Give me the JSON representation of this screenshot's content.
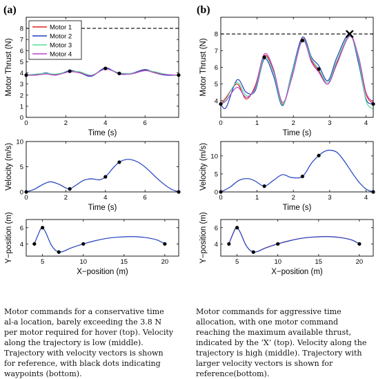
{
  "panels": {
    "a": {
      "label": "(a)",
      "caption": "Motor commands for a conservative time al-a location, barely exceeding the 3.8 N per motor required for hover (top). Velocity along the trajectory is low (middle). Trajectory with velocity vectors is shown for reference, with black dots indicating waypoints (bottom)."
    },
    "b": {
      "label": "(b)",
      "caption": "Motor commands for aggressive time allocation, with one motor command reaching the maximum available thrust, indicated by the ‘X’ (top). Velocity along the trajectory is high (middle). Trajectory with larger velocity vectors is shown for reference(bottom)."
    }
  },
  "colors": {
    "motor1": "#dd2222",
    "motor2": "#1f3fbf",
    "motor3": "#55dd99",
    "motor4": "#bb44cc",
    "velocity": "#1f3fbf",
    "vectors": "#ee2222",
    "limit": "#000000"
  },
  "chart_data": [
    {
      "id": "a-thrust",
      "type": "line",
      "xlabel": "Time (s)",
      "ylabel": "Motor Thrust (N)",
      "xlim": [
        0,
        7.7
      ],
      "ylim": [
        0,
        9
      ],
      "xticks": [
        0,
        2,
        4,
        6
      ],
      "yticks": [
        0,
        1,
        2,
        3,
        4,
        5,
        6,
        7,
        8
      ],
      "legend": {
        "placement": "top-left",
        "entries": [
          "Motor 1",
          "Motor 2",
          "Motor 3",
          "Motor 4"
        ]
      },
      "limit_line": 8,
      "waypoints": [
        [
          0,
          3.8
        ],
        [
          2.2,
          4.15
        ],
        [
          4.0,
          4.4
        ],
        [
          4.7,
          3.95
        ],
        [
          7.7,
          3.8
        ]
      ],
      "series": [
        {
          "name": "Motor 1",
          "color": "motor1",
          "x": [
            0,
            0.5,
            1.0,
            1.5,
            2.2,
            2.7,
            3.3,
            4.0,
            4.7,
            5.3,
            6.0,
            6.5,
            7.0,
            7.7
          ],
          "y": [
            3.8,
            3.85,
            3.95,
            3.85,
            4.15,
            4.05,
            3.75,
            4.4,
            3.95,
            3.95,
            4.25,
            4.05,
            3.85,
            3.8
          ]
        },
        {
          "name": "Motor 2",
          "color": "motor2",
          "x": [
            0,
            0.5,
            1.0,
            1.5,
            2.2,
            2.7,
            3.3,
            4.0,
            4.7,
            5.3,
            6.0,
            6.5,
            7.0,
            7.7
          ],
          "y": [
            3.8,
            3.8,
            4.0,
            3.8,
            4.2,
            4.0,
            3.7,
            4.45,
            3.9,
            3.95,
            4.3,
            4.0,
            3.8,
            3.8
          ]
        },
        {
          "name": "Motor 3",
          "color": "motor3",
          "x": [
            0,
            0.5,
            1.0,
            1.5,
            2.2,
            2.7,
            3.3,
            4.0,
            4.7,
            5.3,
            6.0,
            6.5,
            7.0,
            7.7
          ],
          "y": [
            3.8,
            3.9,
            3.95,
            3.9,
            4.1,
            4.1,
            3.8,
            4.35,
            4.0,
            3.95,
            4.2,
            4.1,
            3.9,
            3.75
          ]
        },
        {
          "name": "Motor 4",
          "color": "motor4",
          "x": [
            0,
            0.5,
            1.0,
            1.5,
            2.2,
            2.7,
            3.3,
            4.0,
            4.7,
            5.3,
            6.0,
            6.5,
            7.0,
            7.7
          ],
          "y": [
            3.8,
            3.8,
            3.9,
            3.8,
            4.1,
            4.0,
            3.75,
            4.35,
            3.95,
            3.9,
            4.2,
            4.0,
            3.85,
            3.8
          ]
        }
      ]
    },
    {
      "id": "a-velocity",
      "type": "line",
      "xlabel": "Time (s)",
      "ylabel": "Velocity (m/s)",
      "xlim": [
        0,
        7.7
      ],
      "ylim": [
        0,
        10
      ],
      "xticks": [
        0,
        2,
        4,
        6
      ],
      "yticks": [
        0,
        5,
        10
      ],
      "waypoints": [
        [
          0,
          0
        ],
        [
          2.2,
          0.6
        ],
        [
          4.0,
          3.0
        ],
        [
          4.7,
          5.9
        ],
        [
          7.7,
          0
        ]
      ],
      "series": [
        {
          "color": "velocity",
          "x": [
            0,
            0.4,
            0.8,
            1.2,
            1.6,
            2.0,
            2.2,
            2.5,
            2.9,
            3.3,
            3.7,
            4.0,
            4.4,
            4.7,
            5.0,
            5.3,
            5.7,
            6.1,
            6.5,
            6.9,
            7.3,
            7.7
          ],
          "y": [
            0,
            0.5,
            1.4,
            2.0,
            1.6,
            0.8,
            0.6,
            1.3,
            2.3,
            2.6,
            2.4,
            3.0,
            4.8,
            5.9,
            6.4,
            6.4,
            5.8,
            4.6,
            3.1,
            1.7,
            0.6,
            0
          ]
        }
      ]
    },
    {
      "id": "a-trajectory",
      "type": "line",
      "xlabel": "X−position (m)",
      "ylabel": "Y−position (m)",
      "xlim": [
        3,
        21.7
      ],
      "ylim": [
        2.5,
        7
      ],
      "xticks": [
        5,
        10,
        15,
        20
      ],
      "yticks": [
        4,
        6
      ],
      "waypoints": [
        [
          4,
          4
        ],
        [
          5,
          6
        ],
        [
          7,
          3
        ],
        [
          10,
          4
        ],
        [
          20,
          4
        ]
      ],
      "vector_scale": 0.03,
      "series": [
        {
          "color": "velocity",
          "x": [
            4,
            4.4,
            4.8,
            5.0,
            5.4,
            6.0,
            6.5,
            7.0,
            7.6,
            8.5,
            10,
            11.5,
            13,
            14.5,
            16,
            17.5,
            19,
            20
          ],
          "y": [
            4,
            5.0,
            5.9,
            6.0,
            5.4,
            4.0,
            3.3,
            3.0,
            3.1,
            3.5,
            4.0,
            4.4,
            4.7,
            4.85,
            4.9,
            4.8,
            4.5,
            4.0
          ]
        }
      ]
    },
    {
      "id": "b-thrust",
      "type": "line",
      "xlabel": "Time (s)",
      "ylabel": "Motor Thrust (N)",
      "xlim": [
        0,
        4.2
      ],
      "ylim": [
        3,
        9
      ],
      "xticks": [
        0,
        1,
        2,
        3,
        4
      ],
      "yticks": [
        4,
        5,
        6,
        7,
        8
      ],
      "limit_line": 8,
      "max_marker": [
        3.55,
        8.0
      ],
      "waypoints": [
        [
          0,
          3.8
        ],
        [
          1.2,
          6.6
        ],
        [
          2.25,
          7.6
        ],
        [
          2.7,
          5.9
        ],
        [
          4.2,
          3.8
        ]
      ],
      "series": [
        {
          "name": "Motor 1",
          "color": "motor1",
          "x": [
            0,
            0.15,
            0.45,
            0.7,
            0.95,
            1.2,
            1.45,
            1.7,
            1.95,
            2.25,
            2.5,
            2.7,
            2.95,
            3.2,
            3.55,
            3.8,
            4.0,
            4.2
          ],
          "y": [
            3.8,
            4.2,
            5.0,
            4.1,
            4.9,
            6.7,
            5.8,
            3.8,
            5.4,
            7.7,
            6.4,
            5.8,
            5.0,
            6.3,
            7.95,
            6.5,
            4.4,
            3.8
          ]
        },
        {
          "name": "Motor 2",
          "color": "motor2",
          "x": [
            0,
            0.15,
            0.45,
            0.7,
            0.95,
            1.2,
            1.45,
            1.7,
            1.95,
            2.25,
            2.5,
            2.7,
            2.95,
            3.2,
            3.55,
            3.8,
            4.0,
            4.2
          ],
          "y": [
            3.8,
            3.6,
            5.25,
            4.5,
            4.6,
            6.5,
            5.5,
            3.7,
            5.6,
            7.8,
            6.6,
            6.1,
            5.2,
            6.6,
            8.0,
            6.2,
            4.1,
            3.8
          ]
        },
        {
          "name": "Motor 3",
          "color": "motor3",
          "x": [
            0,
            0.15,
            0.45,
            0.7,
            0.95,
            1.2,
            1.45,
            1.7,
            1.95,
            2.25,
            2.5,
            2.7,
            2.95,
            3.2,
            3.55,
            3.8,
            4.0,
            4.2
          ],
          "y": [
            3.8,
            4.1,
            5.1,
            4.3,
            4.7,
            6.6,
            5.7,
            3.75,
            5.5,
            7.65,
            6.5,
            5.9,
            5.1,
            6.4,
            7.9,
            6.4,
            4.0,
            3.5
          ]
        },
        {
          "name": "Motor 4",
          "color": "motor4",
          "x": [
            0,
            0.15,
            0.45,
            0.7,
            0.95,
            1.2,
            1.45,
            1.7,
            1.95,
            2.25,
            2.5,
            2.7,
            2.95,
            3.2,
            3.55,
            3.8,
            4.0,
            4.2
          ],
          "y": [
            3.8,
            4.0,
            4.8,
            4.2,
            4.8,
            6.8,
            5.9,
            3.9,
            5.3,
            7.6,
            6.3,
            5.7,
            5.0,
            6.2,
            7.85,
            6.6,
            4.5,
            3.9
          ]
        }
      ]
    },
    {
      "id": "b-velocity",
      "type": "line",
      "xlabel": "Time (s)",
      "ylabel": "Velocity (m/s)",
      "xlim": [
        0,
        4.2
      ],
      "ylim": [
        0,
        14
      ],
      "xticks": [
        0,
        1,
        2,
        3,
        4
      ],
      "yticks": [
        0,
        5,
        10
      ],
      "waypoints": [
        [
          0,
          0
        ],
        [
          1.2,
          1.6
        ],
        [
          2.25,
          4.3
        ],
        [
          2.7,
          10.1
        ],
        [
          4.2,
          0
        ]
      ],
      "series": [
        {
          "color": "velocity",
          "x": [
            0,
            0.25,
            0.5,
            0.75,
            0.95,
            1.2,
            1.45,
            1.7,
            1.95,
            2.25,
            2.5,
            2.7,
            2.85,
            3.0,
            3.2,
            3.4,
            3.6,
            3.8,
            4.0,
            4.2
          ],
          "y": [
            0,
            1.3,
            3.2,
            3.7,
            3.0,
            1.6,
            3.2,
            4.8,
            4.0,
            4.3,
            8.0,
            10.1,
            11.2,
            11.6,
            11.0,
            8.6,
            5.6,
            2.8,
            0.8,
            0
          ]
        }
      ]
    },
    {
      "id": "b-trajectory",
      "type": "line",
      "xlabel": "X−position (m)",
      "ylabel": "Y−position (m)",
      "xlim": [
        3,
        21.7
      ],
      "ylim": [
        2.5,
        7
      ],
      "xticks": [
        5,
        10,
        15,
        20
      ],
      "yticks": [
        4,
        6
      ],
      "waypoints": [
        [
          4,
          4
        ],
        [
          5,
          6
        ],
        [
          7,
          3
        ],
        [
          10,
          4
        ],
        [
          20,
          4
        ]
      ],
      "vector_scale": 0.11,
      "series": [
        {
          "color": "velocity",
          "x": [
            4,
            4.4,
            4.8,
            5.0,
            5.4,
            6.0,
            6.5,
            7.0,
            7.6,
            8.5,
            10,
            11.5,
            13,
            14.5,
            16,
            17.5,
            19,
            20
          ],
          "y": [
            4,
            5.0,
            5.9,
            6.0,
            5.4,
            4.0,
            3.3,
            3.0,
            3.1,
            3.5,
            4.0,
            4.4,
            4.7,
            4.85,
            4.9,
            4.8,
            4.5,
            4.0
          ]
        }
      ]
    }
  ]
}
